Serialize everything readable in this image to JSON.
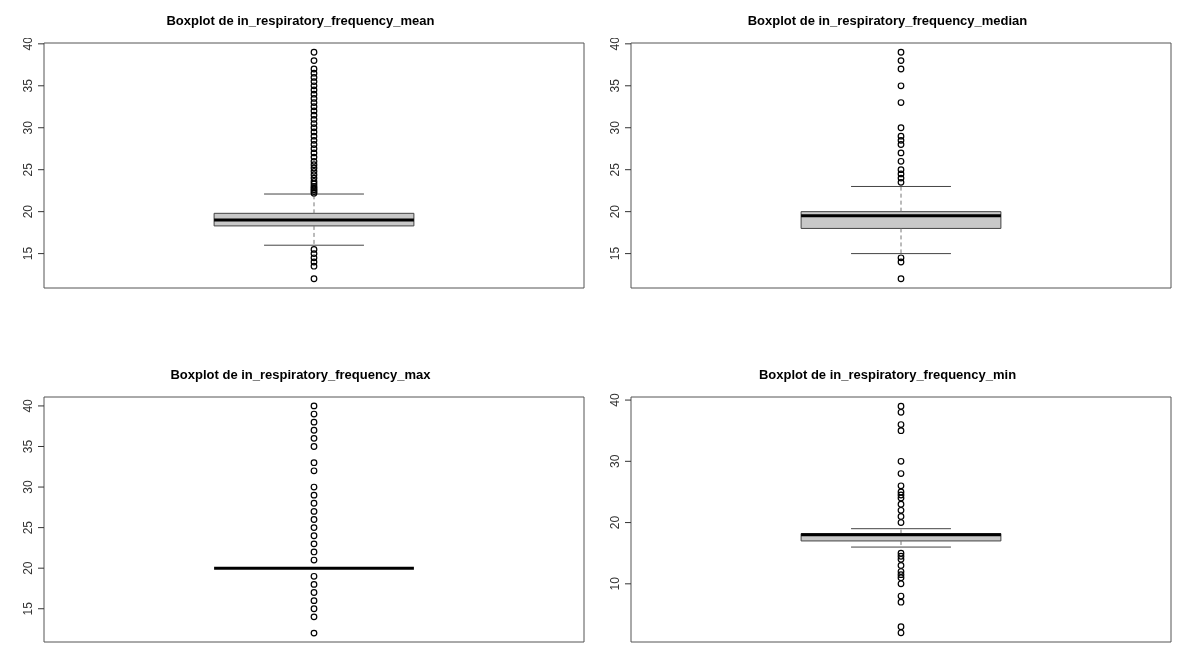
{
  "chart_data": [
    {
      "type": "box",
      "title": "Boxplot de in_respiratory_frequency_mean",
      "categories": [
        null
      ],
      "color": "#c8c8c8",
      "marker": "circle",
      "tick_labels": "y",
      "ylim": [
        10.9,
        40.1
      ],
      "yticks": [
        15,
        20,
        25,
        30,
        35,
        40
      ],
      "boxes": [
        {
          "low": 16,
          "q1": 18.3,
          "median": 19,
          "q3": 19.8,
          "high": 22.1,
          "outliers": [
            22.2,
            22.4,
            22.6,
            22.8,
            23,
            23.3,
            23.6,
            24,
            24.4,
            24.8,
            25.2,
            25.6,
            26,
            26.5,
            27,
            27.5,
            28,
            28.5,
            29,
            29.5,
            30,
            30.5,
            31,
            31.5,
            32,
            32.5,
            33,
            33.5,
            34,
            34.5,
            35,
            35.5,
            36,
            36.5,
            37,
            38,
            39,
            15.5,
            15,
            14.5,
            14,
            13.5,
            12
          ]
        }
      ]
    },
    {
      "type": "box",
      "title": "Boxplot de in_respiratory_frequency_median",
      "categories": [
        null
      ],
      "color": "#c8c8c8",
      "marker": "circle",
      "tick_labels": "y",
      "ylim": [
        10.9,
        40.1
      ],
      "yticks": [
        15,
        20,
        25,
        30,
        35,
        40
      ],
      "boxes": [
        {
          "low": 15,
          "q1": 18,
          "median": 19.5,
          "q3": 20,
          "high": 23,
          "outliers": [
            23.5,
            24,
            24.5,
            25,
            26,
            27,
            28,
            28.5,
            29,
            30,
            33,
            35,
            37,
            38,
            39,
            14.5,
            14,
            12
          ]
        }
      ]
    },
    {
      "type": "box",
      "title": "Boxplot de in_respiratory_frequency_max",
      "categories": [
        null
      ],
      "marker": "circle",
      "tick_labels": "y",
      "ylim": [
        10.9,
        41.1
      ],
      "yticks": [
        15,
        20,
        25,
        30,
        35,
        40
      ],
      "boxes": [
        {
          "low": 20,
          "q1": 20,
          "median": 20,
          "q3": 20,
          "high": 20,
          "outliers": [
            40,
            39,
            38,
            37,
            36,
            35,
            33,
            32,
            30,
            29,
            28,
            27,
            26,
            25,
            24,
            23,
            22,
            21,
            19,
            18,
            17,
            16,
            15,
            14,
            12
          ]
        }
      ]
    },
    {
      "type": "box",
      "title": "Boxplot de in_respiratory_frequency_min",
      "categories": [
        null
      ],
      "color": "#c8c8c8",
      "marker": "circle",
      "tick_labels": "y",
      "ylim": [
        0.5,
        40.5
      ],
      "yticks": [
        10,
        20,
        30,
        40
      ],
      "boxes": [
        {
          "low": 16,
          "q1": 17,
          "median": 18,
          "q3": 18.2,
          "high": 19,
          "outliers": [
            39,
            38,
            36,
            35,
            30,
            28,
            26,
            25,
            24.5,
            24,
            23,
            22,
            21,
            20,
            15,
            14.5,
            14,
            13,
            12,
            11.5,
            11,
            10,
            8,
            7,
            3,
            2
          ]
        }
      ]
    }
  ]
}
